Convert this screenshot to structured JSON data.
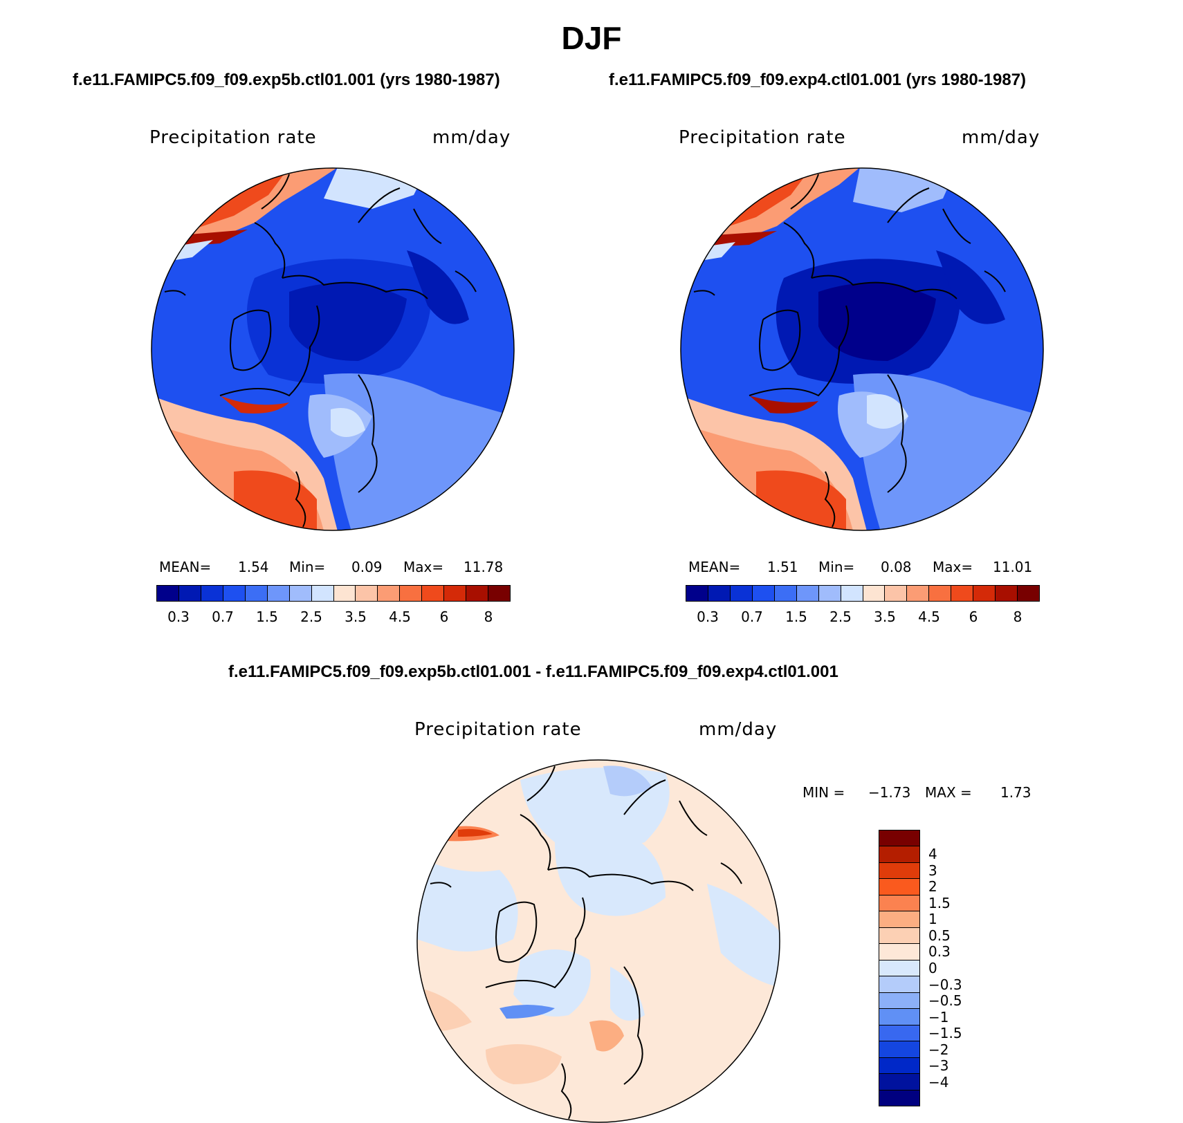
{
  "title": "DJF",
  "panels": [
    {
      "id": "exp5b",
      "subtitle": "f.e11.FAMIPC5.f09_f09.exp5b.ctl01.001 (yrs 1980-1987)",
      "field": "Precipitation rate",
      "units": "mm/day",
      "stats": {
        "mean_label": "MEAN=",
        "mean": "1.54",
        "min_label": "Min=",
        "min": "0.09",
        "max_label": "Max=",
        "max": "11.78"
      }
    },
    {
      "id": "exp4",
      "subtitle": "f.e11.FAMIPC5.f09_f09.exp4.ctl01.001 (yrs 1980-1987)",
      "field": "Precipitation rate",
      "units": "mm/day",
      "stats": {
        "mean_label": "MEAN=",
        "mean": "1.51",
        "min_label": "Min=",
        "min": "0.08",
        "max_label": "Max=",
        "max": "11.01"
      }
    }
  ],
  "abs_colorbar": {
    "colors": [
      "#00008b",
      "#0019b3",
      "#0a32d6",
      "#1e50f0",
      "#3c6ef5",
      "#6e96fa",
      "#a0bcfc",
      "#d2e4fe",
      "#fde4d2",
      "#fcc4a8",
      "#fb9c74",
      "#f87040",
      "#ef4a1c",
      "#d42a08",
      "#a80f00",
      "#780000"
    ],
    "labels": [
      "0.3",
      "0.7",
      "1.5",
      "2.5",
      "3.5",
      "4.5",
      "6",
      "8"
    ]
  },
  "diff_panel": {
    "subtitle": "f.e11.FAMIPC5.f09_f09.exp5b.ctl01.001 - f.e11.FAMIPC5.f09_f09.exp4.ctl01.001",
    "field": "Precipitation rate",
    "units": "mm/day",
    "min_label": "MIN =",
    "min": "−1.73",
    "max_label": "MAX =",
    "max": "1.73"
  },
  "diff_colorbar": {
    "colors": [
      "#780000",
      "#b41e00",
      "#e03c0a",
      "#fa5a1e",
      "#fb8250",
      "#fcae82",
      "#fcd0b4",
      "#fde8d8",
      "#d8e8fc",
      "#b4ccfa",
      "#8cb0f8",
      "#6090f5",
      "#3868f0",
      "#1446e0",
      "#0028c8",
      "#00129e",
      "#000080"
    ],
    "labels": [
      "4",
      "3",
      "2",
      "1.5",
      "1",
      "0.5",
      "0.3",
      "0",
      "−0.3",
      "−0.5",
      "−1",
      "−1.5",
      "−2",
      "−3",
      "−4"
    ]
  }
}
